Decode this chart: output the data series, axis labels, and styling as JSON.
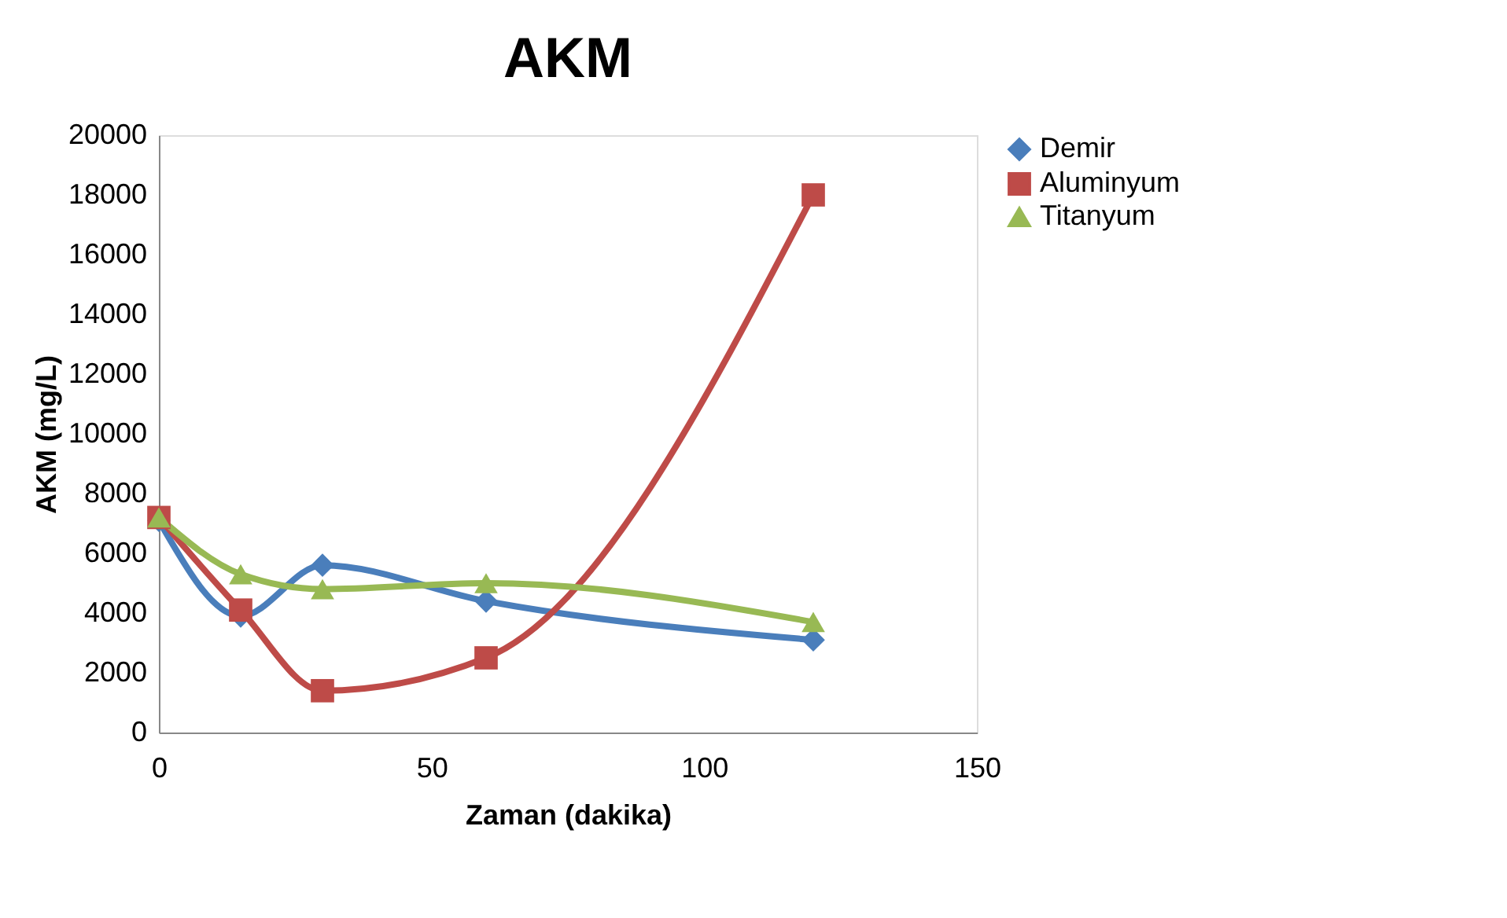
{
  "chart_data": {
    "type": "line",
    "title": "AKM",
    "xlabel": "Zaman (dakika)",
    "ylabel": "AKM (mg/L)",
    "x": [
      0,
      15,
      30,
      60,
      120
    ],
    "series": [
      {
        "name": "Demir",
        "color": "#4a7ebb",
        "marker": "diamond",
        "values": [
          7100,
          3900,
          5600,
          4400,
          3100
        ]
      },
      {
        "name": "Aluminyum",
        "color": "#be4b48",
        "marker": "square",
        "values": [
          7200,
          4100,
          1400,
          2500,
          18000
        ]
      },
      {
        "name": "Titanyum",
        "color": "#98b954",
        "marker": "triangle",
        "values": [
          7200,
          5300,
          4800,
          5000,
          3700
        ]
      }
    ],
    "xlim": [
      0,
      150
    ],
    "xticks": [
      0,
      50,
      100,
      150
    ],
    "ylim": [
      0,
      20000
    ],
    "yticks": [
      0,
      2000,
      4000,
      6000,
      8000,
      10000,
      12000,
      14000,
      16000,
      18000,
      20000
    ],
    "grid": false,
    "legend": "right",
    "line_style": "solid"
  }
}
